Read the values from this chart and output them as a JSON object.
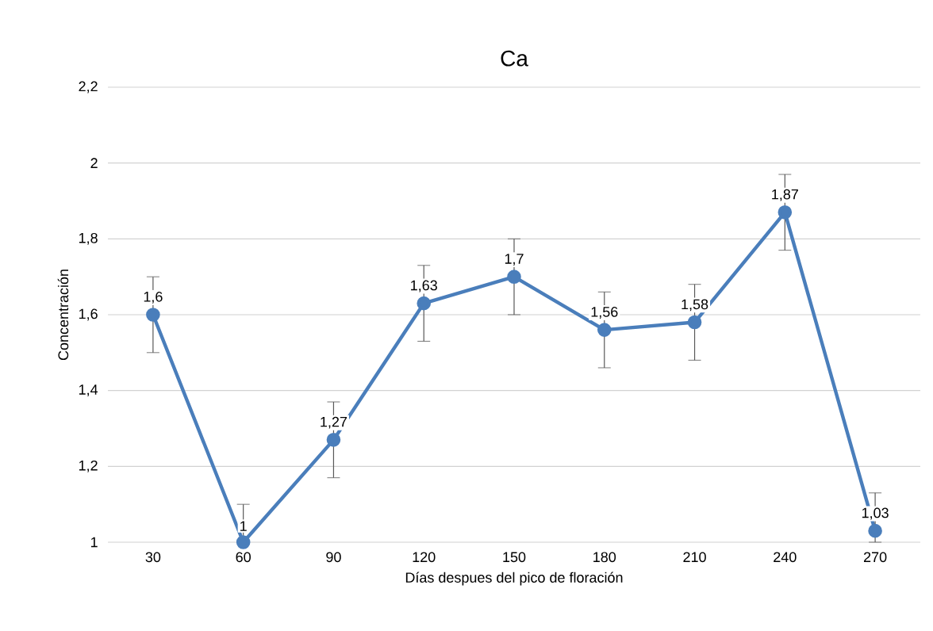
{
  "chart_data": {
    "type": "line",
    "title": "Ca",
    "xlabel": "Días despues del pico de floración",
    "ylabel": "Concentración",
    "categories": [
      "30",
      "60",
      "90",
      "120",
      "150",
      "180",
      "210",
      "240",
      "270"
    ],
    "series": [
      {
        "color": "#4a7ebb",
        "values": [
          1.6,
          1.0,
          1.27,
          1.63,
          1.7,
          1.56,
          1.58,
          1.87,
          1.03
        ],
        "errors": [
          0.1,
          [
            1,
            1.1
          ],
          0.1,
          0.1,
          0.1,
          0.1,
          0.1,
          0.1,
          [
            1,
            1.13
          ]
        ],
        "value_labels": [
          "1,6",
          "1",
          "1,27",
          "1,63",
          "1,7",
          "1,56",
          "1,58",
          "1,87",
          "1,03"
        ]
      }
    ],
    "ylim": [
      1,
      2.2
    ],
    "yticks": [
      {
        "value": 1,
        "label": "1"
      },
      {
        "value": 1.2,
        "label": "1,2"
      },
      {
        "value": 1.4,
        "label": "1,4"
      },
      {
        "value": 1.6,
        "label": "1,6"
      },
      {
        "value": 1.8,
        "label": "1,8"
      },
      {
        "value": 2,
        "label": "2"
      },
      {
        "value": 2.2,
        "label": "2,2"
      }
    ],
    "grid": "y",
    "marker": "circle",
    "line_style": "solid"
  }
}
